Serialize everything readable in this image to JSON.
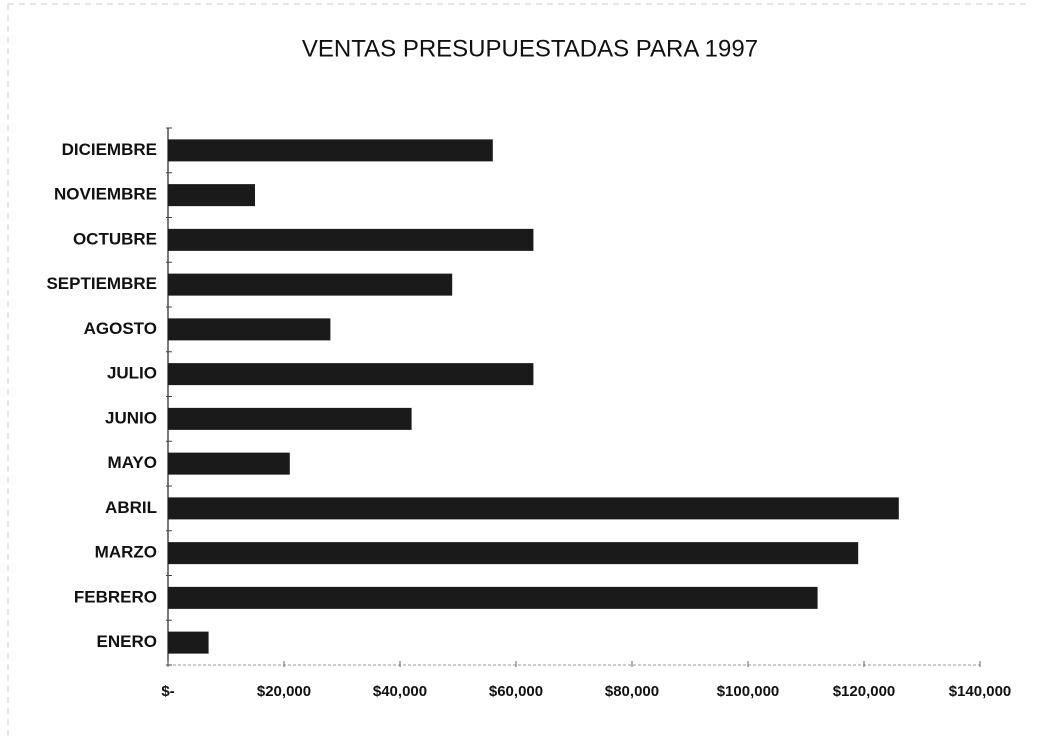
{
  "chart_data": {
    "type": "bar",
    "orientation": "horizontal",
    "title": "VENTAS PRESUPUESTADAS PARA 1997",
    "categories": [
      "ENERO",
      "FEBRERO",
      "MARZO",
      "ABRIL",
      "MAYO",
      "JUNIO",
      "JULIO",
      "AGOSTO",
      "SEPTIEMBRE",
      "OCTUBRE",
      "NOVIEMBRE",
      "DICIEMBRE"
    ],
    "values": [
      7000,
      112000,
      119000,
      126000,
      21000,
      42000,
      63000,
      28000,
      49000,
      63000,
      15000,
      56000
    ],
    "color": "#1a1a1a",
    "xlim": [
      0,
      140000
    ],
    "xticks": [
      {
        "value": 0,
        "label": "$-"
      },
      {
        "value": 20000,
        "label": "$20,000"
      },
      {
        "value": 40000,
        "label": "$40,000"
      },
      {
        "value": 60000,
        "label": "$60,000"
      },
      {
        "value": 80000,
        "label": "$80,000"
      },
      {
        "value": 100000,
        "label": "$100,000"
      },
      {
        "value": 120000,
        "label": "$120,000"
      },
      {
        "value": 140000,
        "label": "$140,000"
      }
    ],
    "grid": false
  }
}
